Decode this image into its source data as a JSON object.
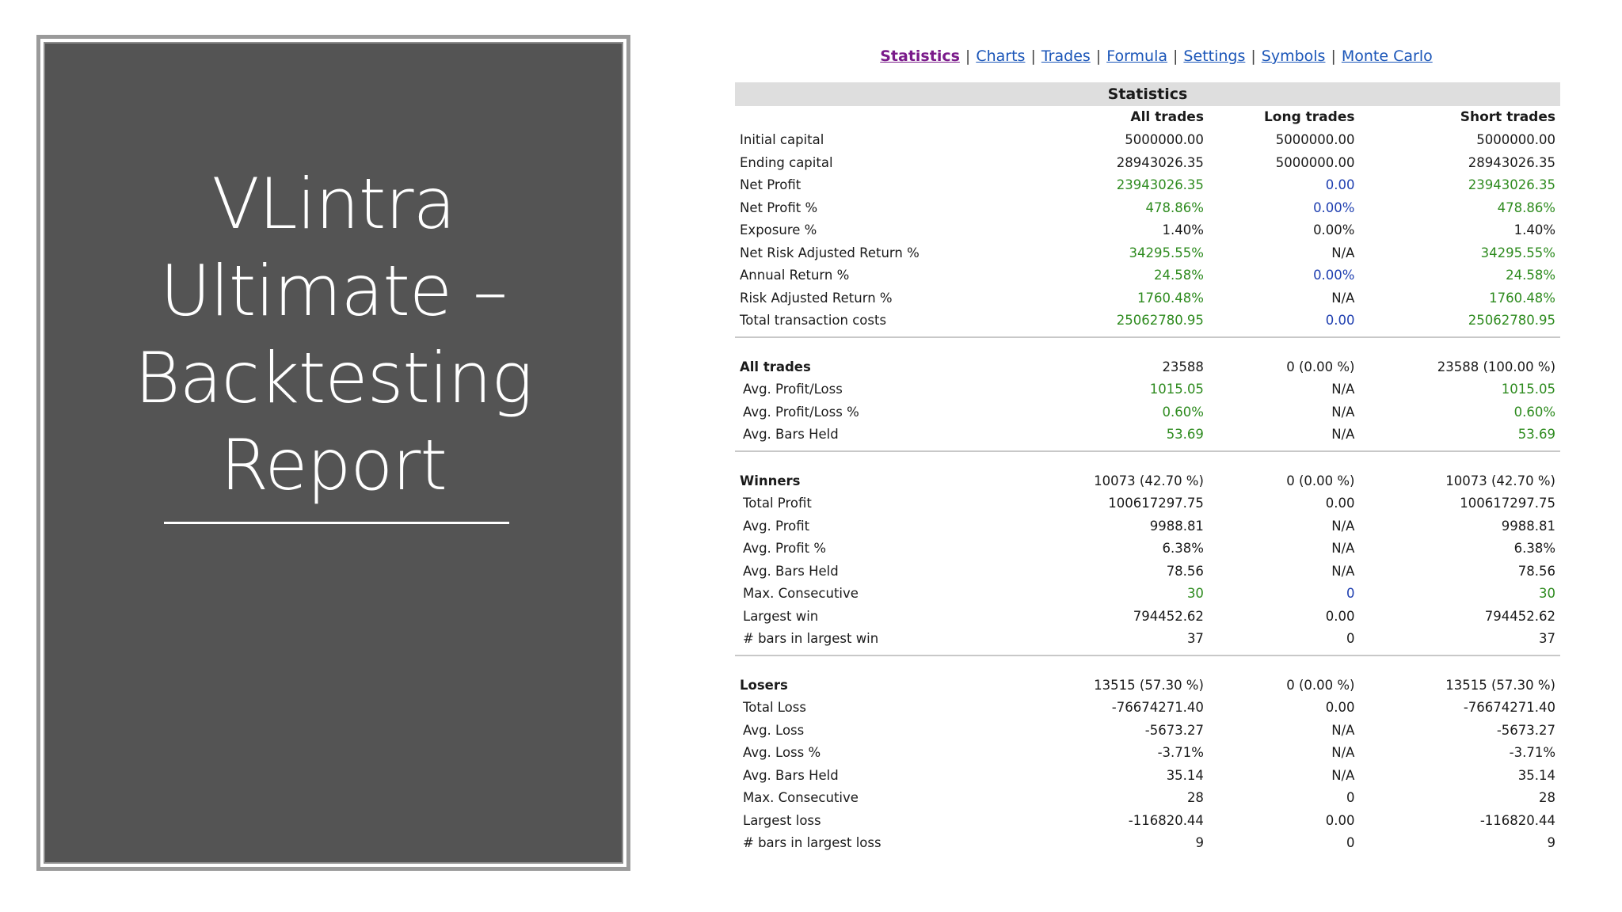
{
  "slide": {
    "title_lines": [
      "VLintra",
      "Ultimate –",
      "Backtesting",
      "Report"
    ]
  },
  "nav": {
    "items": [
      "Statistics",
      "Charts",
      "Trades",
      "Formula",
      "Settings",
      "Symbols",
      "Monte Carlo"
    ],
    "active": "Statistics",
    "separator": "|"
  },
  "table": {
    "title": "Statistics",
    "columns": [
      "",
      "All trades",
      "Long trades",
      "Short trades"
    ],
    "colors": {
      "positive": "#2e8b1f",
      "neutral_blue": "#1f3fb0"
    },
    "sections": [
      {
        "rows": [
          {
            "label": "Initial capital",
            "values": [
              "5000000.00",
              "5000000.00",
              "5000000.00"
            ],
            "colors": [
              "",
              "",
              ""
            ]
          },
          {
            "label": "Ending capital",
            "values": [
              "28943026.35",
              "5000000.00",
              "28943026.35"
            ],
            "colors": [
              "",
              "",
              ""
            ]
          },
          {
            "label": "Net Profit",
            "values": [
              "23943026.35",
              "0.00",
              "23943026.35"
            ],
            "colors": [
              "g",
              "b",
              "g"
            ]
          },
          {
            "label": "Net Profit %",
            "values": [
              "478.86%",
              "0.00%",
              "478.86%"
            ],
            "colors": [
              "g",
              "b",
              "g"
            ]
          },
          {
            "label": "Exposure %",
            "values": [
              "1.40%",
              "0.00%",
              "1.40%"
            ],
            "colors": [
              "",
              "",
              ""
            ]
          },
          {
            "label": "Net Risk Adjusted Return %",
            "values": [
              "34295.55%",
              "N/A",
              "34295.55%"
            ],
            "colors": [
              "g",
              "",
              "g"
            ]
          },
          {
            "label": "Annual Return %",
            "values": [
              "24.58%",
              "0.00%",
              "24.58%"
            ],
            "colors": [
              "g",
              "b",
              "g"
            ]
          },
          {
            "label": "Risk Adjusted Return %",
            "values": [
              "1760.48%",
              "N/A",
              "1760.48%"
            ],
            "colors": [
              "g",
              "",
              "g"
            ]
          },
          {
            "label": "Total transaction costs",
            "values": [
              "25062780.95",
              "0.00",
              "25062780.95"
            ],
            "colors": [
              "g",
              "b",
              "g"
            ]
          }
        ]
      },
      {
        "rows": [
          {
            "label": "All trades",
            "bold": true,
            "values": [
              "23588",
              "0 (0.00 %)",
              "23588 (100.00 %)"
            ],
            "colors": [
              "",
              "",
              ""
            ]
          },
          {
            "label": "Avg. Profit/Loss",
            "sub": true,
            "values": [
              "1015.05",
              "N/A",
              "1015.05"
            ],
            "colors": [
              "g",
              "",
              "g"
            ]
          },
          {
            "label": "Avg. Profit/Loss %",
            "sub": true,
            "values": [
              "0.60%",
              "N/A",
              "0.60%"
            ],
            "colors": [
              "g",
              "",
              "g"
            ]
          },
          {
            "label": "Avg. Bars Held",
            "sub": true,
            "values": [
              "53.69",
              "N/A",
              "53.69"
            ],
            "colors": [
              "g",
              "",
              "g"
            ]
          }
        ]
      },
      {
        "rows": [
          {
            "label": "Winners",
            "bold": true,
            "values": [
              "10073 (42.70 %)",
              "0 (0.00 %)",
              "10073 (42.70 %)"
            ],
            "colors": [
              "",
              "",
              ""
            ]
          },
          {
            "label": "Total Profit",
            "sub": true,
            "values": [
              "100617297.75",
              "0.00",
              "100617297.75"
            ],
            "colors": [
              "",
              "",
              ""
            ]
          },
          {
            "label": "Avg. Profit",
            "sub": true,
            "values": [
              "9988.81",
              "N/A",
              "9988.81"
            ],
            "colors": [
              "",
              "",
              ""
            ]
          },
          {
            "label": "Avg. Profit %",
            "sub": true,
            "values": [
              "6.38%",
              "N/A",
              "6.38%"
            ],
            "colors": [
              "",
              "",
              ""
            ]
          },
          {
            "label": "Avg. Bars Held",
            "sub": true,
            "values": [
              "78.56",
              "N/A",
              "78.56"
            ],
            "colors": [
              "",
              "",
              ""
            ]
          },
          {
            "label": "Max. Consecutive",
            "sub": true,
            "values": [
              "30",
              "0",
              "30"
            ],
            "colors": [
              "g",
              "b",
              "g"
            ]
          },
          {
            "label": "Largest win",
            "sub": true,
            "values": [
              "794452.62",
              "0.00",
              "794452.62"
            ],
            "colors": [
              "",
              "",
              ""
            ]
          },
          {
            "label": "# bars in largest win",
            "sub": true,
            "values": [
              "37",
              "0",
              "37"
            ],
            "colors": [
              "",
              "",
              ""
            ]
          }
        ]
      },
      {
        "rows": [
          {
            "label": "Losers",
            "bold": true,
            "values": [
              "13515 (57.30 %)",
              "0 (0.00 %)",
              "13515 (57.30 %)"
            ],
            "colors": [
              "",
              "",
              ""
            ]
          },
          {
            "label": "Total Loss",
            "sub": true,
            "values": [
              "-76674271.40",
              "0.00",
              "-76674271.40"
            ],
            "colors": [
              "",
              "",
              ""
            ]
          },
          {
            "label": "Avg. Loss",
            "sub": true,
            "values": [
              "-5673.27",
              "N/A",
              "-5673.27"
            ],
            "colors": [
              "",
              "",
              ""
            ]
          },
          {
            "label": "Avg. Loss %",
            "sub": true,
            "values": [
              "-3.71%",
              "N/A",
              "-3.71%"
            ],
            "colors": [
              "",
              "",
              ""
            ]
          },
          {
            "label": "Avg. Bars Held",
            "sub": true,
            "values": [
              "35.14",
              "N/A",
              "35.14"
            ],
            "colors": [
              "",
              "",
              ""
            ]
          },
          {
            "label": "Max. Consecutive",
            "sub": true,
            "values": [
              "28",
              "0",
              "28"
            ],
            "colors": [
              "",
              "",
              ""
            ]
          },
          {
            "label": "Largest loss",
            "sub": true,
            "values": [
              "-116820.44",
              "0.00",
              "-116820.44"
            ],
            "colors": [
              "",
              "",
              ""
            ]
          },
          {
            "label": "# bars in largest loss",
            "sub": true,
            "values": [
              "9",
              "0",
              "9"
            ],
            "colors": [
              "",
              "",
              ""
            ]
          }
        ]
      }
    ]
  }
}
